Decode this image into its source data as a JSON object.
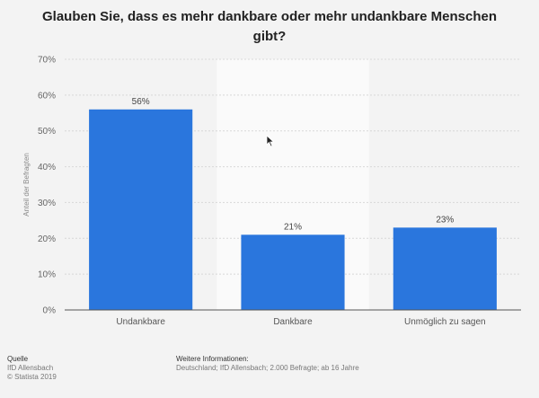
{
  "title": "Glauben Sie, dass es mehr dankbare oder mehr undankbare Menschen gibt?",
  "chart_data": {
    "type": "bar",
    "categories": [
      "Undankbare",
      "Dankbare",
      "Unmöglich zu sagen"
    ],
    "values": [
      56,
      21,
      23
    ],
    "data_labels": [
      "56%",
      "21%",
      "23%"
    ],
    "ylabel": "Anteil der Befragten",
    "ylim": [
      0,
      70
    ],
    "yticks": [
      0,
      10,
      20,
      30,
      40,
      50,
      60,
      70
    ],
    "ytick_labels": [
      "0%",
      "10%",
      "20%",
      "30%",
      "40%",
      "50%",
      "60%",
      "70%"
    ],
    "bar_color": "#2a76dd",
    "highlight_category": "Dankbare",
    "grid": true
  },
  "footer": {
    "source_heading": "Quelle",
    "source_line1": "IfD Allensbach",
    "source_line2": "© Statista 2019",
    "info_heading": "Weitere Informationen:",
    "info_text": "Deutschland; IfD Allensbach; 2.000 Befragte; ab 16 Jahre"
  }
}
